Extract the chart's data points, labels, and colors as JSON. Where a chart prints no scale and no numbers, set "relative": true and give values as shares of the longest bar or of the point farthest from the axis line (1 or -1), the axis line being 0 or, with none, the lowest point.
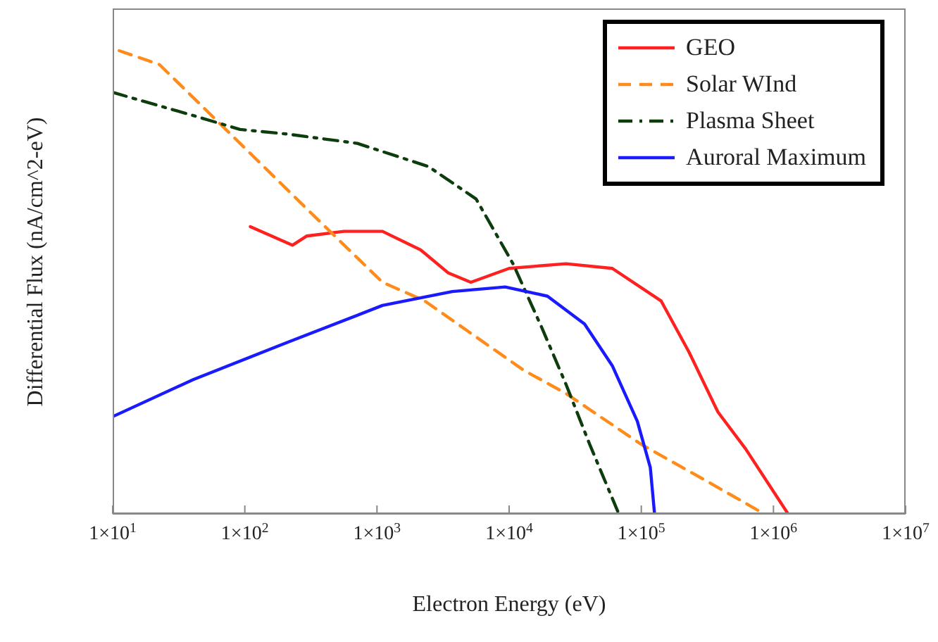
{
  "chart_data": {
    "type": "line",
    "relative": true,
    "xlabel": "Electron Energy (eV)",
    "ylabel": "Differential Flux (nA/cm^2-eV)",
    "log": "x",
    "xlim": [
      10,
      10000000
    ],
    "xticks": [
      {
        "value": 10,
        "label": "1×10$^{1}$"
      },
      {
        "value": 100,
        "label": "1×10$^{2}$"
      },
      {
        "value": 1000,
        "label": "1×10$^{3}$"
      },
      {
        "value": 10000,
        "label": "1×10$^{4}$"
      },
      {
        "value": 100000,
        "label": "1×10$^{5}$"
      },
      {
        "value": 1000000,
        "label": "1×10$^{6}$"
      },
      {
        "value": 10000000,
        "label": "1×10$^{7}$"
      }
    ],
    "grid": false,
    "legend": "top right",
    "marker": "none",
    "series": [
      {
        "name": "GEO",
        "color": "#ff2020",
        "line_style": "solid",
        "x": [
          110,
          229,
          295,
          562,
          1100,
          2140,
          3470,
          5130,
          10000,
          26900,
          60300,
          141000,
          229000,
          380000,
          617000,
          1290000
        ],
        "values": [
          0.62,
          0.58,
          0.6,
          0.61,
          0.61,
          0.57,
          0.52,
          0.5,
          0.53,
          0.54,
          0.53,
          0.46,
          0.35,
          0.22,
          0.14,
          0
        ]
      },
      {
        "name": "Solar WInd",
        "color": "#ff8c1a",
        "line_style": "dashed",
        "x": [
          11.2,
          22.6,
          92,
          316,
          1100,
          2290,
          12900,
          26900,
          100000,
          316000,
          851000
        ],
        "values": [
          1,
          0.97,
          0.8,
          0.65,
          0.5,
          0.46,
          0.31,
          0.26,
          0.15,
          0.07,
          0
        ]
      },
      {
        "name": "Plasma Sheet",
        "color": "#0d3d0d",
        "line_style": "dashdot",
        "x": [
          10,
          40.7,
          92,
          209,
          708,
          2450,
          5620,
          10700,
          17800,
          26900,
          40700,
          67600
        ],
        "values": [
          0.91,
          0.86,
          0.83,
          0.82,
          0.8,
          0.75,
          0.68,
          0.54,
          0.4,
          0.28,
          0.15,
          0
        ]
      },
      {
        "name": "Auroral Maximum",
        "color": "#1a1aff",
        "line_style": "solid",
        "x": [
          10,
          40.7,
          209,
          1100,
          3720,
          9330,
          19500,
          37200,
          60300,
          93300,
          117000,
          126000
        ],
        "values": [
          0.21,
          0.29,
          0.37,
          0.45,
          0.48,
          0.49,
          0.47,
          0.41,
          0.32,
          0.2,
          0.1,
          0
        ]
      }
    ]
  }
}
